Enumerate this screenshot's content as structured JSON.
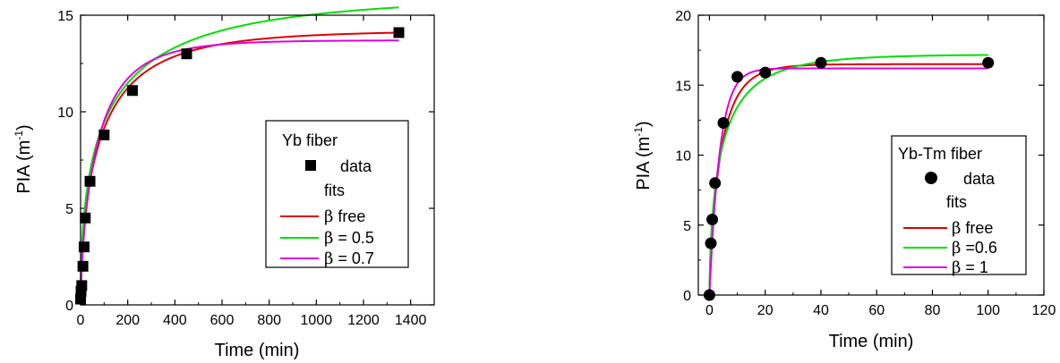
{
  "chart_data": [
    {
      "type": "line",
      "xlabel": "Time (min)",
      "ylabel_main": "PIA (m",
      "ylabel_sup": "-1",
      "ylabel_tail": ")",
      "xlim": [
        0,
        1500
      ],
      "ylim": [
        0,
        15
      ],
      "xticks": [
        0,
        200,
        400,
        600,
        800,
        1000,
        1200,
        1400
      ],
      "yticks": [
        0,
        5,
        10,
        15
      ],
      "markers": {
        "shape": "square",
        "x": [
          0,
          2,
          5,
          10,
          15,
          20,
          40,
          100,
          220,
          450,
          1350
        ],
        "y": [
          0.3,
          0.7,
          1.0,
          2.0,
          3.0,
          4.5,
          6.4,
          8.8,
          11.1,
          13.0,
          14.1
        ]
      },
      "legend": {
        "title": "Yb fiber",
        "data_label": "data",
        "fits_label": "fits",
        "entries": [
          {
            "greek": "β",
            "text": " free"
          },
          {
            "greek": "β",
            "text": " = 0.5"
          },
          {
            "greek": "β",
            "text": " = 0.7"
          }
        ]
      },
      "series": [
        {
          "color": "#e00000",
          "A": 14.2,
          "tau": 95,
          "beta": 0.6,
          "xmax": 1350
        },
        {
          "color": "#00e000",
          "A": 16.0,
          "tau": 125,
          "beta": 0.5,
          "xmax": 1350
        },
        {
          "color": "#e000e0",
          "A": 13.7,
          "tau": 78,
          "beta": 0.7,
          "xmax": 1350
        }
      ]
    },
    {
      "type": "line",
      "xlabel": "Time (min)",
      "ylabel_main": "PIA (m",
      "ylabel_sup": "-1",
      "ylabel_tail": ")",
      "xlim": [
        -4,
        120
      ],
      "ylim": [
        0,
        20
      ],
      "xticks": [
        0,
        20,
        40,
        60,
        80,
        100,
        120
      ],
      "yticks": [
        0,
        5,
        10,
        15,
        20
      ],
      "markers": {
        "shape": "circle",
        "x": [
          0,
          0.5,
          1,
          2,
          5,
          10,
          20,
          40,
          100
        ],
        "y": [
          0,
          3.7,
          5.4,
          8.0,
          12.3,
          15.6,
          15.9,
          16.6,
          16.6
        ]
      },
      "legend": {
        "title": "Yb-Tm fiber",
        "data_label": "data",
        "fits_label": "fits",
        "entries": [
          {
            "greek": "β",
            "text": " free"
          },
          {
            "greek": "β",
            "text": " =0.6"
          },
          {
            "greek": "β",
            "text": " = 1"
          }
        ]
      },
      "series": [
        {
          "color": "#e00000",
          "A": 16.5,
          "tau": 4.3,
          "beta": 0.8,
          "xmax": 100
        },
        {
          "color": "#00e000",
          "A": 17.2,
          "tau": 5.0,
          "beta": 0.6,
          "xmax": 100
        },
        {
          "color": "#e000e0",
          "A": 16.2,
          "tau": 3.7,
          "beta": 1.0,
          "xmax": 100
        }
      ]
    }
  ],
  "colors": {
    "axis": "#000000",
    "fit_red": "#e00000",
    "fit_green": "#00e000",
    "fit_magenta": "#e000e0"
  }
}
